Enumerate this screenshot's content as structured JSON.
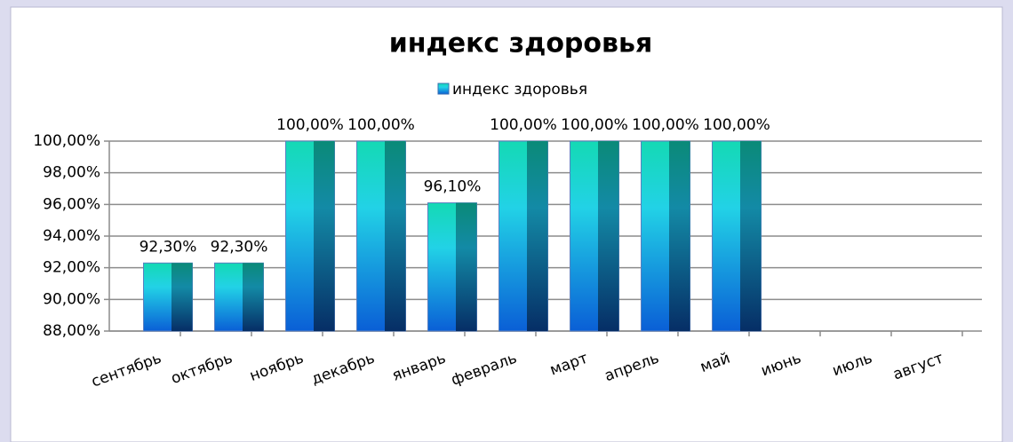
{
  "chart_data": {
    "type": "bar",
    "title": "индекс здоровья",
    "categories": [
      "сентябрь",
      "октябрь",
      "ноябрь",
      "декабрь",
      "январь",
      "февраль",
      "март",
      "апрель",
      "май",
      "июнь",
      "июль",
      "август"
    ],
    "series": [
      {
        "name": "индекс здоровья",
        "color": "#1fb8e0",
        "values": [
          92.3,
          92.3,
          100,
          100,
          96.1,
          100,
          100,
          100,
          100,
          null,
          null,
          null
        ],
        "value_labels": [
          "92,30%",
          "92,30%",
          "100,00%",
          "100,00%",
          "96,10%",
          "100,00%",
          "100,00%",
          "100,00%",
          "100,00%",
          null,
          null,
          null
        ]
      }
    ],
    "ylim": [
      88,
      100
    ],
    "yticks": [
      {
        "value": 88,
        "label": "88,00%"
      },
      {
        "value": 90,
        "label": "90,00%"
      },
      {
        "value": 92,
        "label": "92,00%"
      },
      {
        "value": 94,
        "label": "94,00%"
      },
      {
        "value": 96,
        "label": "96,00%"
      },
      {
        "value": 98,
        "label": "98,00%"
      },
      {
        "value": 100,
        "label": "100,00%"
      }
    ],
    "grid": true,
    "legend": "top"
  }
}
